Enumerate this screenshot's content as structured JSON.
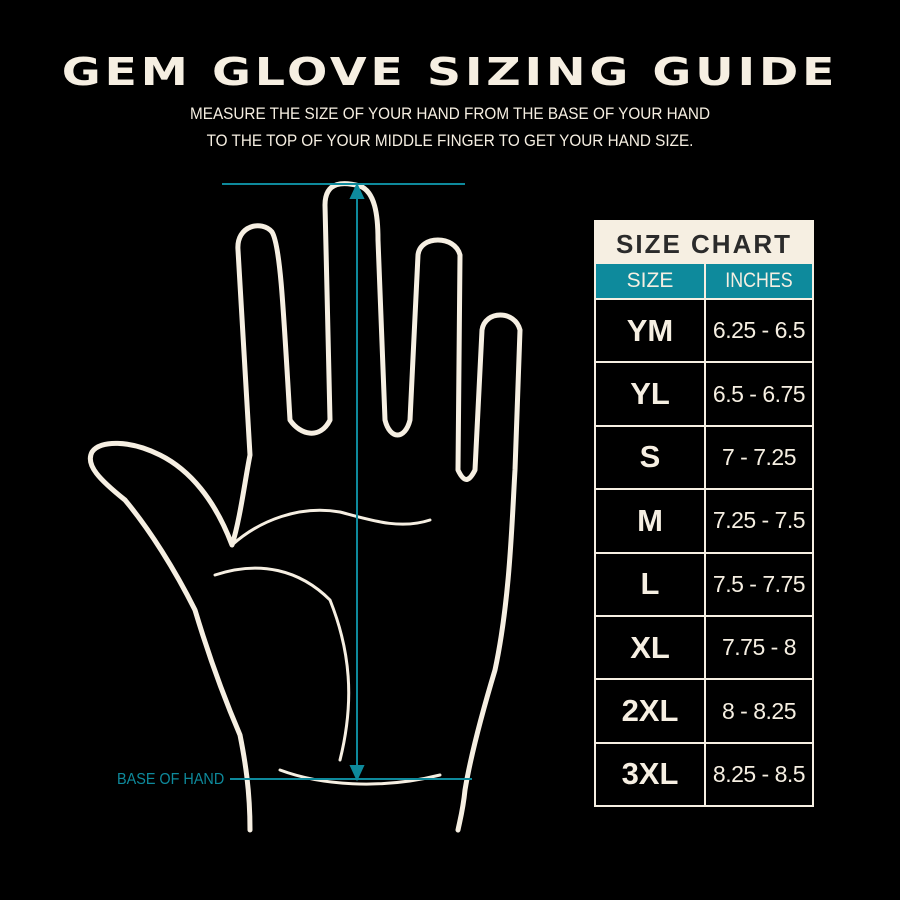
{
  "title": "GEM GLOVE SIZING GUIDE",
  "subtitle_lines": [
    "MEASURE THE SIZE OF YOUR HAND FROM THE BASE OF YOUR HAND",
    "TO THE TOP OF YOUR MIDDLE FINGER TO GET YOUR HAND SIZE."
  ],
  "base_label": "BASE OF HAND",
  "colors": {
    "background": "#000000",
    "cream": "#f6efe2",
    "teal": "#0e8a9c",
    "title_dark": "#2b2b2b"
  },
  "size_chart": {
    "title": "SIZE CHART",
    "headers": [
      "SIZE",
      "INCHES"
    ],
    "rows": [
      {
        "size": "YM",
        "inches": "6.25 - 6.5"
      },
      {
        "size": "YL",
        "inches": "6.5 - 6.75"
      },
      {
        "size": "S",
        "inches": "7 - 7.25"
      },
      {
        "size": "M",
        "inches": "7.25 - 7.5"
      },
      {
        "size": "L",
        "inches": "7.5 - 7.75"
      },
      {
        "size": "XL",
        "inches": "7.75 - 8"
      },
      {
        "size": "2XL",
        "inches": "8 - 8.25"
      },
      {
        "size": "3XL",
        "inches": "8.25 - 8.5"
      }
    ]
  }
}
